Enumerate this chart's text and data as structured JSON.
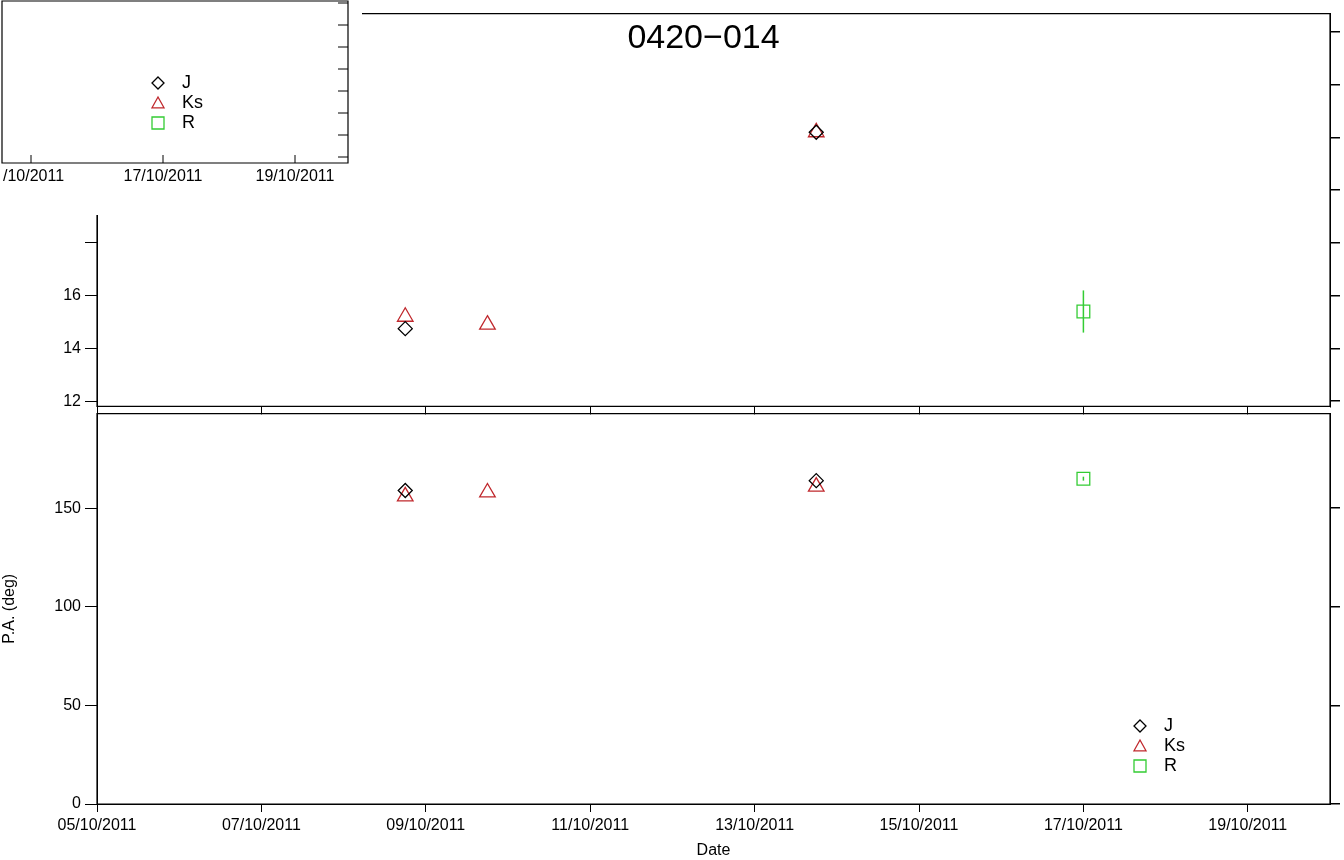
{
  "chart_data": [
    {
      "type": "other",
      "annotations": [
        "/10/2011",
        "17/10/2011",
        "19/10/2011"
      ],
      "legend": "bottom right",
      "series": [
        {
          "name": "J",
          "color": "#000000",
          "marker": "diamond"
        },
        {
          "name": "Ks",
          "color": "#c0282d",
          "marker": "triangle"
        },
        {
          "name": "R",
          "color": "#33cc33",
          "marker": "square"
        }
      ]
    },
    {
      "type": "scatter",
      "title": "0420−014",
      "xlim": [
        "2011-10-05",
        "2011-10-20"
      ],
      "xticks": [
        {
          "value": "2011-10-05",
          "label": null
        },
        {
          "value": "2011-10-07",
          "label": null
        },
        {
          "value": "2011-10-09",
          "label": null
        },
        {
          "value": "2011-10-11",
          "label": null
        },
        {
          "value": "2011-10-13",
          "label": null
        },
        {
          "value": "2011-10-15",
          "label": null
        },
        {
          "value": "2011-10-17",
          "label": null
        },
        {
          "value": "2011-10-19",
          "label": null
        }
      ],
      "ylim": [
        11.8,
        26.7
      ],
      "yticks": [
        12,
        14,
        16,
        {
          "value": 18,
          "label": null
        },
        {
          "value": 20,
          "label": null
        },
        {
          "value": 22,
          "label": null
        },
        {
          "value": 24,
          "label": null
        },
        {
          "value": 26,
          "label": null
        }
      ],
      "tick_labels": "y",
      "grid": false,
      "series": [
        {
          "color": "#000000",
          "marker": "diamond",
          "x": [
            "2011-10-08T18:00",
            "2011-10-13T18:00"
          ],
          "values": [
            14.75,
            22.2
          ]
        },
        {
          "color": "#c0282d",
          "marker": "triangle",
          "x": [
            "2011-10-08T18:00",
            "2011-10-09T18:00",
            "2011-10-13T18:00"
          ],
          "values": [
            15.2,
            14.9,
            22.2
          ]
        },
        {
          "color": "#33cc33",
          "marker": "square",
          "x": [
            "2011-10-17"
          ],
          "values": [
            15.4
          ],
          "errors": [
            0.8
          ]
        }
      ]
    },
    {
      "type": "scatter",
      "xlabel": "Date",
      "ylabel": "P.A. (deg)",
      "xlim": [
        "2011-10-05",
        "2011-10-20"
      ],
      "xticks": [
        {
          "value": "2011-10-05",
          "label": "05/10/2011"
        },
        {
          "value": "2011-10-07",
          "label": "07/10/2011"
        },
        {
          "value": "2011-10-09",
          "label": "09/10/2011"
        },
        {
          "value": "2011-10-11",
          "label": "11/10/2011"
        },
        {
          "value": "2011-10-13",
          "label": "13/10/2011"
        },
        {
          "value": "2011-10-15",
          "label": "15/10/2011"
        },
        {
          "value": "2011-10-17",
          "label": "17/10/2011"
        },
        {
          "value": "2011-10-19",
          "label": "19/10/2011"
        }
      ],
      "ylim": [
        0,
        198
      ],
      "yticks": [
        0,
        50,
        100,
        150
      ],
      "legend": "bottom right",
      "grid": false,
      "series": [
        {
          "name": "J",
          "color": "#000000",
          "marker": "diamond",
          "x": [
            "2011-10-08T18:00",
            "2011-10-13T18:00"
          ],
          "values": [
            159,
            164
          ]
        },
        {
          "name": "Ks",
          "color": "#c0282d",
          "marker": "triangle",
          "x": [
            "2011-10-08T18:00",
            "2011-10-09T18:00",
            "2011-10-13T18:00"
          ],
          "values": [
            156,
            158,
            161
          ]
        },
        {
          "name": "R",
          "color": "#33cc33",
          "marker": "square",
          "x": [
            "2011-10-17"
          ],
          "values": [
            165
          ],
          "errors": [
            1
          ]
        }
      ]
    }
  ]
}
